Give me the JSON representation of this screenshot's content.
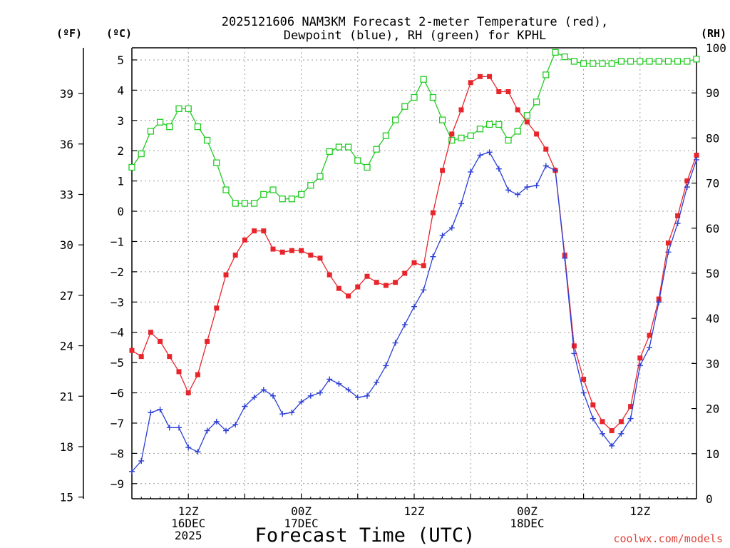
{
  "chart_data": {
    "type": "line",
    "title_line1": "2025121606 NAM3KM Forecast 2-meter Temperature (red),",
    "title_line2": "Dewpoint (blue), RH (green) for KPHL",
    "left_outer_unit": "(ºF)",
    "left_inner_unit": "(ºC)",
    "right_unit": "(RH)",
    "xlabel": "Forecast Time (UTC)",
    "watermark": "coolwx.com/models",
    "x_range_hours": [
      0,
      60
    ],
    "c_range": [
      -9.5,
      5.4
    ],
    "rh_range": [
      0,
      100
    ],
    "c_ticks": [
      "5",
      "4",
      "3",
      "2",
      "1",
      "0",
      "−1",
      "−2",
      "−3",
      "−4",
      "−5",
      "−6",
      "−7",
      "−8",
      "−9"
    ],
    "c_tick_values": [
      5,
      4,
      3,
      2,
      1,
      0,
      -1,
      -2,
      -3,
      -4,
      -5,
      -6,
      -7,
      -8,
      -9
    ],
    "f_ticks": [
      "39",
      "36",
      "33",
      "30",
      "27",
      "24",
      "21",
      "18",
      "15"
    ],
    "f_tick_values": [
      39,
      36,
      33,
      30,
      27,
      24,
      21,
      18,
      15
    ],
    "rh_ticks": [
      "100",
      "90",
      "80",
      "70",
      "60",
      "50",
      "40",
      "30",
      "20",
      "10",
      "0"
    ],
    "rh_tick_values": [
      100,
      90,
      80,
      70,
      60,
      50,
      40,
      30,
      20,
      10,
      0
    ],
    "x_ticks": [
      {
        "hour": 6,
        "l1": "12Z",
        "l2": "16DEC",
        "l3": "2025"
      },
      {
        "hour": 18,
        "l1": "00Z",
        "l2": "17DEC",
        "l3": ""
      },
      {
        "hour": 30,
        "l1": "12Z",
        "l2": "",
        "l3": ""
      },
      {
        "hour": 42,
        "l1": "00Z",
        "l2": "18DEC",
        "l3": ""
      },
      {
        "hour": 54,
        "l1": "12Z",
        "l2": "",
        "l3": ""
      }
    ],
    "series": [
      {
        "name": "Temperature",
        "color": "#e8252b",
        "marker": "filled-square",
        "x": [
          0,
          1,
          2,
          3,
          4,
          5,
          6,
          7,
          8,
          9,
          10,
          11,
          12,
          13,
          14,
          15,
          16,
          17,
          18,
          19,
          20,
          21,
          22,
          23,
          24,
          25,
          26,
          27,
          28,
          29,
          30,
          31,
          32,
          33,
          34,
          35,
          36,
          37,
          38,
          39,
          40,
          41,
          42,
          43,
          44,
          45,
          46,
          47,
          48,
          49,
          50,
          51,
          52,
          53,
          54,
          55,
          56,
          57,
          58,
          59,
          60
        ],
        "values": [
          -4.6,
          -4.8,
          -4.0,
          -4.3,
          -4.8,
          -5.3,
          -6.0,
          -5.4,
          -4.3,
          -3.2,
          -2.1,
          -1.45,
          -0.95,
          -0.65,
          -0.65,
          -1.25,
          -1.35,
          -1.3,
          -1.3,
          -1.45,
          -1.55,
          -2.1,
          -2.55,
          -2.8,
          -2.5,
          -2.15,
          -2.35,
          -2.45,
          -2.35,
          -2.05,
          -1.7,
          -1.8,
          -0.05,
          1.35,
          2.55,
          3.35,
          4.25,
          4.45,
          4.45,
          3.95,
          3.95,
          3.35,
          2.95,
          2.55,
          2.05,
          1.35,
          -1.45,
          -4.45,
          -5.55,
          -6.4,
          -6.95,
          -7.25,
          -6.95,
          -6.45,
          -4.85,
          -4.1,
          -2.9,
          -1.05,
          -0.15,
          1.0,
          1.85
        ]
      },
      {
        "name": "Dewpoint",
        "color": "#2b3fd6",
        "marker": "plus",
        "x": [
          0,
          1,
          2,
          3,
          4,
          5,
          6,
          7,
          8,
          9,
          10,
          11,
          12,
          13,
          14,
          15,
          16,
          17,
          18,
          19,
          20,
          21,
          22,
          23,
          24,
          25,
          26,
          27,
          28,
          29,
          30,
          31,
          32,
          33,
          34,
          35,
          36,
          37,
          38,
          39,
          40,
          41,
          42,
          43,
          44,
          45,
          46,
          47,
          48,
          49,
          50,
          51,
          52,
          53,
          54,
          55,
          56,
          57,
          58,
          59,
          60
        ],
        "values": [
          -8.6,
          -8.25,
          -6.65,
          -6.55,
          -7.15,
          -7.15,
          -7.8,
          -7.95,
          -7.25,
          -6.95,
          -7.25,
          -7.05,
          -6.45,
          -6.15,
          -5.9,
          -6.1,
          -6.7,
          -6.65,
          -6.3,
          -6.1,
          -6.0,
          -5.55,
          -5.7,
          -5.9,
          -6.15,
          -6.1,
          -5.65,
          -5.1,
          -4.35,
          -3.75,
          -3.15,
          -2.6,
          -1.5,
          -0.8,
          -0.55,
          0.25,
          1.3,
          1.85,
          1.95,
          1.4,
          0.7,
          0.55,
          0.8,
          0.85,
          1.5,
          1.35,
          -1.55,
          -4.7,
          -6.0,
          -6.85,
          -7.35,
          -7.75,
          -7.35,
          -6.85,
          -5.1,
          -4.5,
          -3.0,
          -1.35,
          -0.4,
          0.8,
          1.7
        ]
      },
      {
        "name": "RH",
        "color": "#22cc22",
        "marker": "open-square",
        "x": [
          0,
          1,
          2,
          3,
          4,
          5,
          6,
          7,
          8,
          9,
          10,
          11,
          12,
          13,
          14,
          15,
          16,
          17,
          18,
          19,
          20,
          21,
          22,
          23,
          24,
          25,
          26,
          27,
          28,
          29,
          30,
          31,
          32,
          33,
          34,
          35,
          36,
          37,
          38,
          39,
          40,
          41,
          42,
          43,
          44,
          45,
          46,
          47,
          48,
          49,
          50,
          51,
          52,
          53,
          54,
          55,
          56,
          57,
          58,
          59,
          60
        ],
        "values": [
          73.5,
          76.5,
          81.5,
          83.5,
          82.5,
          86.5,
          86.5,
          82.5,
          79.5,
          74.5,
          68.5,
          65.5,
          65.5,
          65.5,
          67.5,
          68.5,
          66.5,
          66.5,
          67.5,
          69.5,
          71.5,
          77,
          78,
          78,
          75,
          73.5,
          77.5,
          80.5,
          84,
          87,
          89,
          93,
          89,
          84,
          79.5,
          80,
          80.5,
          82,
          83,
          83,
          79.5,
          81.5,
          85,
          88,
          94,
          99,
          98,
          97,
          96.5,
          96.5,
          96.5,
          96.5,
          97,
          97,
          97,
          97,
          97,
          97,
          97,
          97,
          97.5
        ]
      }
    ]
  }
}
